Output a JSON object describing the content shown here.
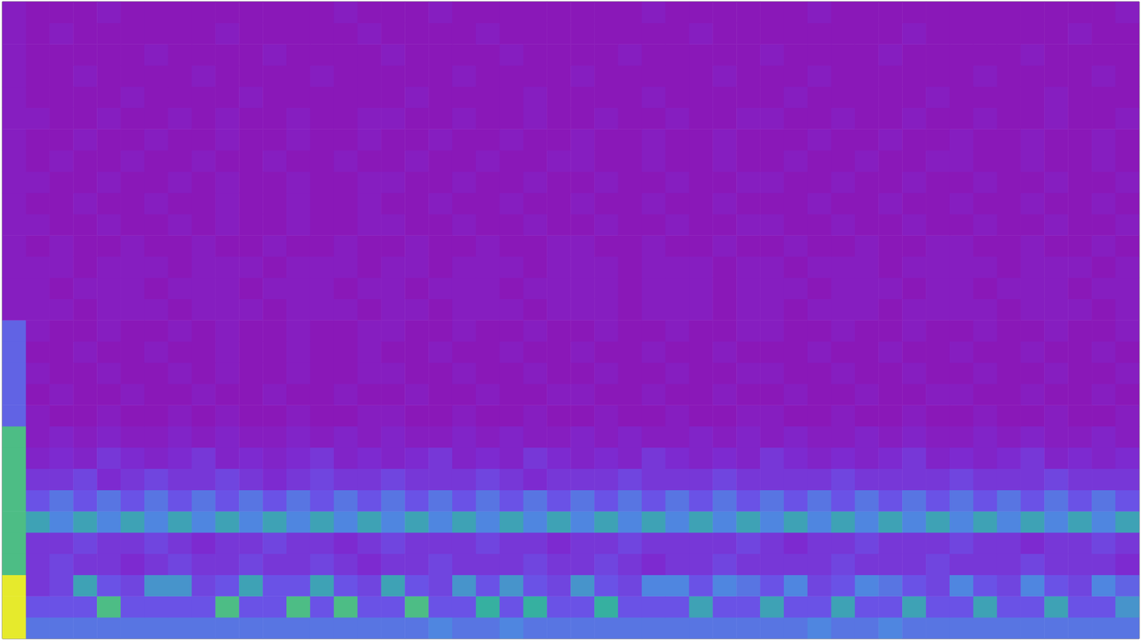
{
  "chart_data": {
    "type": "heatmap",
    "tick_labels": false,
    "grid": false,
    "cells": [
      [
        10,
        5,
        5,
        5,
        5,
        5,
        5,
        5,
        5,
        5,
        5,
        5,
        5,
        5,
        5,
        5,
        5,
        5,
        5.5,
        5,
        5,
        5.5,
        5,
        5,
        5,
        5,
        5,
        5,
        5,
        5,
        5,
        5,
        5,
        5,
        5.5,
        5,
        5,
        5.5,
        5,
        5,
        5,
        5,
        5,
        5,
        5,
        5,
        5,
        5
      ],
      [
        10,
        4,
        4,
        4,
        7.5,
        4,
        4,
        4,
        4,
        7.5,
        4,
        4,
        7.5,
        4,
        7.5,
        4,
        4,
        7.5,
        4,
        4,
        7,
        4,
        7,
        4,
        4,
        7,
        4,
        4,
        4,
        6.5,
        4,
        4,
        6.5,
        4,
        4,
        6.5,
        4,
        4,
        6.5,
        4,
        4,
        6.5,
        4,
        4,
        6.5,
        4,
        4,
        6
      ],
      [
        10,
        3,
        3.5,
        6.5,
        4,
        3.5,
        6,
        6,
        3.5,
        4,
        6.5,
        4,
        4,
        6.5,
        4,
        3.5,
        6.5,
        4,
        3.5,
        6,
        4,
        6,
        4,
        3.5,
        6,
        4,
        3.5,
        5.5,
        5.5,
        4,
        5.5,
        5,
        4,
        5.5,
        3.5,
        4,
        5.5,
        5,
        4,
        3.5,
        5.5,
        4,
        3.5,
        5.5,
        4,
        3.5,
        5.5,
        4.5
      ],
      [
        7.5,
        3,
        3.5,
        3,
        3,
        2.5,
        3,
        3.5,
        3,
        3,
        3.5,
        3,
        3,
        3.5,
        3,
        2.5,
        3,
        3,
        3.5,
        3,
        3,
        3,
        3.5,
        3,
        3,
        3.5,
        3,
        2.5,
        3,
        3,
        3.5,
        3,
        3,
        3,
        3,
        3.5,
        3,
        3,
        3,
        3.5,
        3,
        3,
        3,
        3.5,
        3,
        3,
        3,
        2.5
      ],
      [
        7.5,
        3,
        3,
        3.5,
        3,
        3,
        3.5,
        3,
        2.5,
        3,
        3,
        3.5,
        3,
        3,
        2.5,
        3,
        3.5,
        3,
        3,
        3,
        3.5,
        3,
        3,
        2.5,
        3,
        3,
        3.5,
        3,
        3,
        3,
        3,
        3.5,
        3,
        2.5,
        3,
        3,
        3.5,
        3,
        3,
        3,
        3.5,
        3,
        3,
        2.5,
        3,
        3,
        3.5,
        3
      ],
      [
        7.5,
        6.5,
        5.5,
        6.5,
        5.5,
        6.5,
        5.5,
        6.5,
        5.5,
        6.5,
        5.5,
        6.5,
        5.5,
        6.5,
        5.5,
        6.5,
        5.5,
        6.5,
        5.5,
        6.5,
        5.5,
        6.5,
        5.5,
        6.5,
        5.5,
        6.5,
        5.5,
        6.5,
        5.5,
        6.5,
        5.5,
        6.5,
        5.5,
        6.5,
        5.5,
        6.5,
        5.5,
        6.5,
        5.5,
        6.5,
        5.5,
        6.5,
        5.5,
        6.5,
        5.5,
        6.5,
        5.5,
        6.5
      ],
      [
        7.5,
        4,
        5,
        4,
        5,
        4,
        5,
        4,
        5,
        4,
        5,
        4,
        5,
        4,
        5,
        4,
        5,
        4,
        5,
        4,
        5,
        4,
        5,
        4,
        5,
        4,
        5,
        4,
        5,
        4,
        5,
        4,
        5,
        4,
        5,
        4,
        5,
        4,
        5,
        4,
        5,
        4,
        5,
        4,
        5,
        4,
        5,
        4
      ],
      [
        7.5,
        3,
        3,
        3.5,
        2.5,
        3,
        3.5,
        3,
        3,
        3.5,
        3,
        2.5,
        3,
        3.5,
        3,
        3,
        3.5,
        3,
        3,
        3,
        3.5,
        3,
        2.5,
        3,
        3,
        3,
        3.5,
        3,
        3,
        3,
        3.5,
        3,
        3,
        3,
        3,
        3.5,
        3,
        3,
        3,
        3,
        3.5,
        3,
        3,
        3,
        3.5,
        3,
        3,
        3
      ],
      [
        7.5,
        2,
        2.5,
        2,
        3,
        2.5,
        2,
        2.5,
        3,
        2,
        2.5,
        2,
        2.5,
        3,
        2,
        2.5,
        2,
        2.5,
        3,
        2,
        2.5,
        2,
        3,
        2.5,
        2,
        2.5,
        2,
        3,
        2.5,
        2,
        2.5,
        2,
        3,
        2.5,
        2,
        2.5,
        2,
        2.5,
        3,
        2,
        2.5,
        2,
        2.5,
        3,
        2,
        2.5,
        2,
        2.5
      ],
      [
        7.5,
        1.5,
        2,
        1.5,
        2,
        1.5,
        1.5,
        2,
        1.5,
        2,
        1.5,
        1.5,
        2,
        1.5,
        2,
        1.5,
        2,
        1.5,
        1.5,
        2,
        1.5,
        2,
        1.5,
        1.5,
        2,
        1.5,
        2,
        1.5,
        1.5,
        2,
        1.5,
        2,
        1.5,
        2,
        1.5,
        1.5,
        2,
        1.5,
        2,
        1.5,
        1.5,
        2,
        1.5,
        2,
        1.5,
        1.5,
        2,
        1.5
      ],
      [
        4.5,
        1.5,
        1,
        1,
        1.5,
        1,
        1,
        1.5,
        1,
        1.5,
        1,
        1,
        1.5,
        1,
        1,
        1.5,
        1.5,
        1,
        1,
        1.5,
        1,
        1,
        1.5,
        1,
        1,
        1.5,
        1,
        1,
        1.5,
        1,
        1,
        1.5,
        1.5,
        1,
        1,
        1.5,
        1,
        1,
        1.5,
        1,
        1,
        1.5,
        1,
        1,
        1.5,
        1,
        1,
        1.5
      ],
      [
        4.5,
        1,
        1.5,
        1,
        1,
        1.5,
        1,
        1,
        1.5,
        1,
        1,
        1.5,
        1,
        1,
        1.5,
        1,
        1,
        1.5,
        1,
        1,
        1.5,
        1,
        1,
        1.5,
        1.5,
        1,
        1,
        1.5,
        1,
        1,
        1.5,
        1,
        1,
        1.5,
        1,
        1,
        1.5,
        1,
        1,
        1.5,
        1.5,
        1,
        1,
        1.5,
        1,
        1,
        1.5,
        1
      ],
      [
        4.5,
        1.5,
        1,
        1,
        1.5,
        1,
        1,
        1.5,
        1,
        1.5,
        1,
        1,
        1.5,
        1,
        1,
        1.5,
        1.5,
        1,
        1,
        1.5,
        1,
        1,
        1.5,
        1,
        1,
        1.5,
        1,
        1,
        1.5,
        1,
        1,
        1.5,
        1.5,
        1,
        1,
        1.5,
        1,
        1,
        1.5,
        1,
        1,
        1.5,
        1,
        1,
        1.5,
        1,
        1,
        1.5
      ],
      [
        4.5,
        1,
        1,
        1.5,
        1,
        1,
        1.5,
        1,
        1,
        1.5,
        1,
        1,
        1.5,
        1,
        1,
        1.5,
        1,
        1,
        1.5,
        1,
        1,
        1.5,
        1,
        1,
        1.5,
        1,
        1,
        1.5,
        1,
        1,
        1.5,
        1,
        1,
        1,
        1.5,
        1,
        1,
        1.5,
        1,
        1,
        1.5,
        1,
        1,
        1.5,
        1,
        1,
        1.5,
        1
      ],
      [
        4.5,
        1.5,
        1,
        1,
        1.5,
        1,
        1,
        1.5,
        1,
        1.5,
        1,
        1,
        1.5,
        1,
        1,
        1.5,
        1.5,
        1,
        1,
        1.5,
        1,
        1,
        1.5,
        1,
        1,
        1.5,
        1,
        1,
        1.5,
        1,
        1,
        1.5,
        1.5,
        1,
        1,
        1.5,
        1,
        1,
        1.5,
        1,
        1,
        1.5,
        1,
        1,
        1.5,
        1,
        1,
        1.5
      ],
      [
        1.5,
        1.5,
        1.5,
        1,
        1.5,
        1.5,
        1.5,
        1,
        1.5,
        1.5,
        1.5,
        1,
        1.5,
        1.5,
        1.5,
        1,
        1.5,
        1.5,
        1,
        1.5,
        1.5,
        1.5,
        1,
        1.5,
        1.5,
        1.5,
        1,
        1.5,
        1.5,
        1.5,
        1,
        1.5,
        1.5,
        1,
        1.5,
        1.5,
        1.5,
        1,
        1.5,
        1.5,
        1.5,
        1.5,
        1,
        1.5,
        1.5,
        1.5,
        1,
        1.5
      ],
      [
        1.5,
        1.5,
        1,
        1.5,
        1.5,
        1.5,
        1,
        1.5,
        1.5,
        1.5,
        1,
        1.5,
        1.5,
        1.5,
        1,
        1.5,
        1.5,
        1,
        1.5,
        1.5,
        1.5,
        1,
        1.5,
        1.5,
        1.5,
        1.5,
        1,
        1.5,
        1.5,
        1.5,
        1,
        1.5,
        1.5,
        1.5,
        1,
        1.5,
        1.5,
        1.5,
        1,
        1.5,
        1.5,
        1,
        1.5,
        1.5,
        1.5,
        1,
        1.5,
        1.5
      ],
      [
        1.5,
        1.5,
        1.5,
        1,
        1.5,
        1.5,
        1.5,
        1,
        1.5,
        1.5,
        1.5,
        1,
        1.5,
        1.5,
        1.5,
        1,
        1.5,
        1.5,
        1,
        1.5,
        1.5,
        1.5,
        1,
        1.5,
        1.5,
        1.5,
        1,
        1.5,
        1.5,
        1.5,
        1,
        1.5,
        1.5,
        1,
        1.5,
        1.5,
        1.5,
        1,
        1.5,
        1.5,
        1.5,
        1.5,
        1,
        1.5,
        1.5,
        1.5,
        1,
        1.5
      ],
      [
        1.5,
        1,
        1.5,
        1,
        1,
        1.5,
        1,
        1,
        1.5,
        1,
        1,
        1.5,
        1,
        1,
        1.5,
        1,
        1,
        1.5,
        1,
        1,
        1.5,
        1,
        1,
        1.5,
        1.5,
        1,
        1,
        1.5,
        1,
        1,
        1.5,
        1,
        1,
        1.5,
        1,
        1,
        1.5,
        1,
        1,
        1.5,
        1.5,
        1,
        1,
        1.5,
        1,
        1,
        1.5,
        1
      ],
      [
        1.5,
        1.5,
        1,
        1,
        1.5,
        1,
        1,
        1.5,
        1,
        1.5,
        1,
        1,
        1.5,
        1,
        1,
        1.5,
        1.5,
        1,
        1,
        1.5,
        1,
        1,
        1.5,
        1,
        1,
        1.5,
        1,
        1,
        1.5,
        1,
        1,
        1.5,
        1.5,
        1,
        1,
        1.5,
        1,
        1,
        1.5,
        1,
        1,
        1.5,
        1,
        1,
        1.5,
        1,
        1,
        1.5
      ],
      [
        1.5,
        1,
        1,
        1.5,
        1,
        1,
        1.5,
        1,
        1,
        1.5,
        1,
        1,
        1.5,
        1,
        1,
        1.5,
        1,
        1,
        1.5,
        1,
        1,
        1.5,
        1,
        1,
        1.5,
        1,
        1,
        1.5,
        1,
        1,
        1.5,
        1,
        1,
        1,
        1.5,
        1,
        1,
        1.5,
        1,
        1,
        1.5,
        1,
        1,
        1.5,
        1,
        1,
        1.5,
        1
      ],
      [
        1.5,
        1.5,
        1,
        1,
        1.5,
        1,
        1,
        1.5,
        1,
        1.5,
        1,
        1,
        1.5,
        1,
        1,
        1.5,
        1.5,
        1,
        1,
        1.5,
        1,
        1,
        1.5,
        1,
        1,
        1.5,
        1,
        1,
        1.5,
        1,
        1,
        1.5,
        1.5,
        1,
        1,
        1.5,
        1,
        1,
        1.5,
        1,
        1,
        1.5,
        1,
        1,
        1.5,
        1,
        1,
        1.5
      ],
      [
        1.5,
        1,
        1.5,
        1,
        1,
        1.5,
        1,
        1,
        1.5,
        1,
        1,
        1.5,
        1,
        1,
        1.5,
        1,
        1,
        1.5,
        1,
        1,
        1.5,
        1,
        1,
        1.5,
        1.5,
        1,
        1,
        1.5,
        1,
        1,
        1.5,
        1,
        1,
        1.5,
        1,
        1,
        1.5,
        1,
        1,
        1.5,
        1.5,
        1,
        1,
        1.5,
        1,
        1,
        1.5,
        1
      ],
      [
        1.5,
        1,
        1,
        1.5,
        1,
        1,
        1.5,
        1,
        1,
        1.5,
        1,
        1,
        1.5,
        1,
        1,
        1.5,
        1,
        1,
        1.5,
        1,
        1,
        1.5,
        1,
        1,
        1.5,
        1,
        1,
        1.5,
        1,
        1,
        1.5,
        1,
        1,
        1,
        1.5,
        1,
        1,
        1.5,
        1,
        1,
        1.5,
        1,
        1,
        1.5,
        1,
        1,
        1.5,
        1
      ],
      [
        1.5,
        1.5,
        1,
        1,
        1.5,
        1,
        1,
        1.5,
        1,
        1.5,
        1,
        1,
        1.5,
        1,
        1,
        1.5,
        1.5,
        1,
        1,
        1.5,
        1,
        1,
        1.5,
        1,
        1,
        1.5,
        1,
        1,
        1.5,
        1,
        1,
        1.5,
        1.5,
        1,
        1,
        1.5,
        1,
        1,
        1.5,
        1,
        1,
        1.5,
        1,
        1,
        1.5,
        1,
        1,
        1.5
      ],
      [
        1.5,
        1,
        1,
        1,
        1,
        1.5,
        1,
        1,
        1,
        1,
        1.5,
        1,
        1,
        1,
        1,
        1,
        1,
        1.5,
        1,
        1,
        1,
        1,
        1.5,
        1,
        1,
        1,
        1,
        1.5,
        1,
        1,
        1,
        1,
        1,
        1.5,
        1,
        1,
        1,
        1,
        1,
        1.5,
        1,
        1,
        1,
        1,
        1.5,
        1,
        1,
        1
      ],
      [
        1.5,
        1,
        1,
        1.5,
        1,
        1,
        1,
        1,
        1.5,
        1,
        1,
        1,
        1,
        1.5,
        1,
        1,
        1,
        1,
        1,
        1.5,
        1,
        1,
        1,
        1,
        1.5,
        1,
        1,
        1,
        1,
        1,
        1.5,
        1,
        1,
        1,
        1.5,
        1,
        1,
        1,
        1,
        1,
        1,
        1.5,
        1,
        1,
        1,
        1,
        1.5,
        1
      ],
      [
        1.5,
        1,
        1,
        1,
        1,
        1,
        1.5,
        1,
        1,
        1,
        1,
        1.5,
        1,
        1,
        1,
        1,
        1.5,
        1,
        1,
        1,
        1,
        1.5,
        1,
        1,
        1,
        1,
        1.5,
        1,
        1,
        1,
        1,
        1,
        1.5,
        1,
        1,
        1,
        1,
        1.5,
        1,
        1,
        1,
        1,
        1,
        1.5,
        1,
        1,
        1,
        1
      ],
      [
        1.5,
        1,
        1.5,
        1,
        1,
        1,
        1,
        1,
        1,
        1.5,
        1,
        1,
        1,
        1,
        1,
        1.5,
        1,
        1,
        1,
        1,
        1.5,
        1,
        1,
        1,
        1,
        1,
        1,
        1,
        1,
        1.5,
        1,
        1,
        1,
        1,
        1,
        1,
        1,
        1,
        1.5,
        1,
        1,
        1,
        1,
        1,
        1,
        1.5,
        1,
        1
      ],
      [
        1.5,
        1,
        1,
        1,
        1.5,
        1,
        1,
        1,
        1,
        1,
        1,
        1,
        1,
        1,
        1.5,
        1,
        1,
        1,
        1.5,
        1,
        1,
        1,
        1,
        1,
        1,
        1,
        1,
        1.5,
        1,
        1,
        1,
        1,
        1,
        1,
        1.5,
        1,
        1,
        1,
        1,
        1,
        1,
        1,
        1,
        1,
        1,
        1,
        1,
        1.5
      ]
    ]
  }
}
